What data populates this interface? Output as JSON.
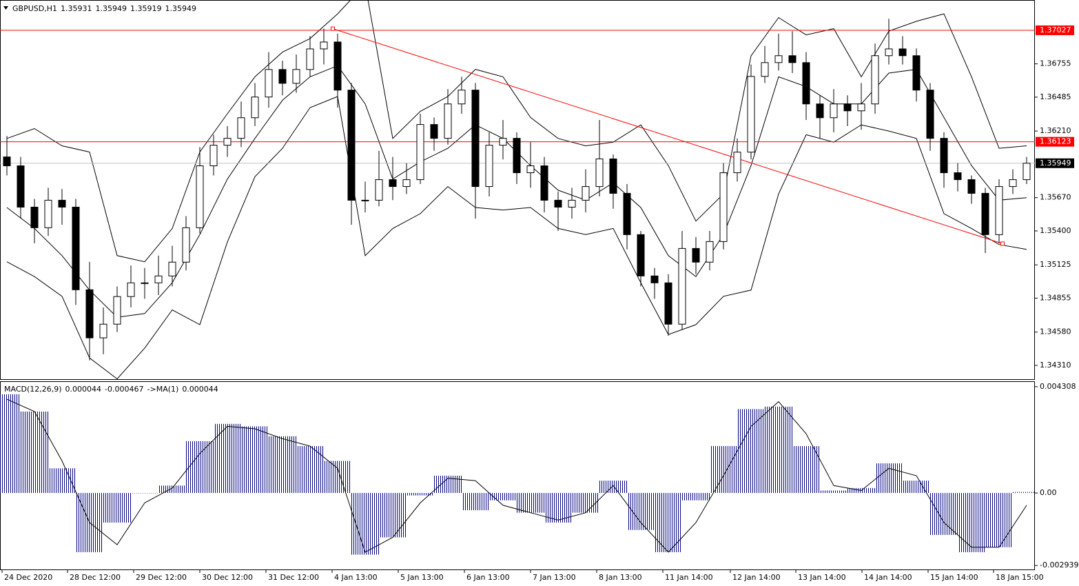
{
  "chart_data": [
    {
      "type": "candlestick",
      "title": "GBPUSD,H1",
      "quote": [
        1.35931,
        1.35949,
        1.35919,
        1.35949
      ],
      "color": "#000000",
      "open": [
        1.36,
        1.35928,
        1.35593,
        1.35426,
        1.35649,
        1.35593,
        1.34923,
        1.34533,
        1.34644,
        1.34868,
        1.34979,
        1.34979,
        1.35035,
        1.35147,
        1.35426,
        1.35928,
        1.36095,
        1.36151,
        1.36318,
        1.36486,
        1.36709,
        1.36597,
        1.36709,
        1.36876,
        1.36932,
        1.36542,
        1.35649,
        1.35649,
        1.35816,
        1.3576,
        1.35816,
        1.36263,
        1.36151,
        1.3643,
        1.36542,
        1.3576,
        1.36095,
        1.36151,
        1.35872,
        1.35928,
        1.35649,
        1.35593,
        1.35649,
        1.3576,
        1.35984,
        1.35705,
        1.3537,
        1.35035,
        1.34979,
        1.34644,
        1.35258,
        1.35147,
        1.35314,
        1.35872,
        1.36039,
        1.36653,
        1.36765,
        1.36821,
        1.36765,
        1.3643,
        1.36318,
        1.3643,
        1.36374,
        1.3643,
        1.36821,
        1.36876,
        1.36821,
        1.36542,
        1.36151,
        1.35872,
        1.35816,
        1.35705,
        1.3537,
        1.3576,
        1.35816
      ],
      "high": [
        1.3617,
        1.36,
        1.3566,
        1.3575,
        1.3574,
        1.3566,
        1.3515,
        1.3478,
        1.3495,
        1.3512,
        1.351,
        1.352,
        1.3528,
        1.3552,
        1.3608,
        1.3618,
        1.3625,
        1.3645,
        1.366,
        1.3685,
        1.3678,
        1.3683,
        1.3698,
        1.3704,
        1.37,
        1.366,
        1.358,
        1.3605,
        1.36,
        1.3595,
        1.3635,
        1.3632,
        1.3655,
        1.3665,
        1.366,
        1.362,
        1.363,
        1.362,
        1.3612,
        1.36,
        1.3572,
        1.3575,
        1.359,
        1.363,
        1.3602,
        1.3578,
        1.354,
        1.351,
        1.3505,
        1.354,
        1.3535,
        1.354,
        1.3595,
        1.3615,
        1.3675,
        1.369,
        1.37,
        1.3702,
        1.3685,
        1.365,
        1.3655,
        1.365,
        1.366,
        1.3692,
        1.3712,
        1.3698,
        1.3688,
        1.366,
        1.362,
        1.3595,
        1.3585,
        1.3575,
        1.3582,
        1.359,
        1.36
      ],
      "low": [
        1.3585,
        1.355,
        1.353,
        1.3536,
        1.3545,
        1.348,
        1.3435,
        1.344,
        1.3458,
        1.3478,
        1.3485,
        1.3488,
        1.3495,
        1.3508,
        1.3538,
        1.3585,
        1.36,
        1.3608,
        1.3625,
        1.364,
        1.365,
        1.3652,
        1.3665,
        1.3675,
        1.364,
        1.3545,
        1.3555,
        1.356,
        1.3565,
        1.357,
        1.3578,
        1.3605,
        1.361,
        1.3635,
        1.355,
        1.3568,
        1.3598,
        1.3578,
        1.3575,
        1.3555,
        1.354,
        1.355,
        1.3555,
        1.3568,
        1.3558,
        1.3525,
        1.3495,
        1.3485,
        1.3455,
        1.346,
        1.3505,
        1.3508,
        1.3525,
        1.358,
        1.3598,
        1.366,
        1.367,
        1.3668,
        1.363,
        1.3615,
        1.362,
        1.3625,
        1.3622,
        1.3635,
        1.3675,
        1.3675,
        1.3645,
        1.3605,
        1.3575,
        1.3572,
        1.3562,
        1.3522,
        1.353,
        1.357,
        1.3578
      ],
      "close": [
        1.35928,
        1.35593,
        1.35426,
        1.35649,
        1.35593,
        1.34923,
        1.34533,
        1.34644,
        1.34868,
        1.34979,
        1.34979,
        1.35035,
        1.35147,
        1.35426,
        1.35928,
        1.36095,
        1.36151,
        1.36318,
        1.36486,
        1.36709,
        1.36597,
        1.36709,
        1.36876,
        1.36932,
        1.36542,
        1.35649,
        1.35649,
        1.35816,
        1.3576,
        1.35816,
        1.36263,
        1.36151,
        1.3643,
        1.36542,
        1.3576,
        1.36095,
        1.36151,
        1.35872,
        1.35928,
        1.35649,
        1.35593,
        1.35649,
        1.3576,
        1.35984,
        1.35705,
        1.3537,
        1.35035,
        1.34979,
        1.34644,
        1.35258,
        1.35147,
        1.35314,
        1.35872,
        1.36039,
        1.36653,
        1.36765,
        1.36821,
        1.36765,
        1.3643,
        1.36318,
        1.3643,
        1.36374,
        1.3643,
        1.36821,
        1.36876,
        1.36821,
        1.36542,
        1.36151,
        1.35872,
        1.35816,
        1.35705,
        1.3537,
        1.3576,
        1.35816,
        1.35949
      ],
      "bands": {
        "color": "#000000",
        "x": [
          0,
          2,
          4,
          6,
          8,
          10,
          12,
          14,
          16,
          18,
          20,
          22,
          24,
          26,
          28,
          30,
          32,
          34,
          36,
          38,
          40,
          42,
          44,
          46,
          48,
          50,
          52,
          54,
          56,
          58,
          60,
          62,
          64,
          66,
          68,
          70,
          72,
          74
        ],
        "upper": [
          1.3615,
          1.3623,
          1.3609,
          1.3604,
          1.352,
          1.3515,
          1.3542,
          1.3604,
          1.3635,
          1.3665,
          1.3685,
          1.3696,
          1.3716,
          1.374,
          1.3615,
          1.3637,
          1.3649,
          1.3671,
          1.3665,
          1.3632,
          1.3615,
          1.3609,
          1.3612,
          1.3626,
          1.3593,
          1.3548,
          1.357,
          1.3682,
          1.3713,
          1.3699,
          1.3704,
          1.3665,
          1.3702,
          1.371,
          1.3716,
          1.3665,
          1.3607,
          1.3609
        ],
        "middle": [
          1.3559,
          1.3542,
          1.352,
          1.3492,
          1.347,
          1.3473,
          1.3498,
          1.3537,
          1.3582,
          1.3615,
          1.3646,
          1.3665,
          1.3674,
          1.3643,
          1.3582,
          1.3596,
          1.3607,
          1.3626,
          1.3615,
          1.3593,
          1.3573,
          1.3565,
          1.3579,
          1.3559,
          1.352,
          1.3503,
          1.3537,
          1.3593,
          1.3665,
          1.3657,
          1.3643,
          1.3643,
          1.3668,
          1.3671,
          1.3632,
          1.3593,
          1.3565,
          1.3567
        ],
        "lower": [
          1.3515,
          1.3503,
          1.3487,
          1.3437,
          1.342,
          1.3445,
          1.3476,
          1.3464,
          1.3531,
          1.3584,
          1.3607,
          1.364,
          1.3649,
          1.352,
          1.3542,
          1.3554,
          1.3576,
          1.3559,
          1.3557,
          1.3559,
          1.3542,
          1.3537,
          1.3542,
          1.3498,
          1.3456,
          1.3464,
          1.3487,
          1.3492,
          1.357,
          1.3618,
          1.3612,
          1.3626,
          1.3621,
          1.3615,
          1.3554,
          1.3542,
          1.3529,
          1.3525
        ]
      },
      "hlines": [
        {
          "value": 1.37027,
          "color": "#ff0000"
        },
        {
          "value": 1.36123,
          "color": "#ff0000"
        }
      ],
      "current": {
        "value": 1.35949,
        "color": "#000000"
      },
      "trendline": {
        "color": "#ff0000",
        "x": [
          23.65,
          72.25
        ],
        "values": [
          1.3704,
          1.35297
        ]
      },
      "xlim": [
        -0.5,
        74.6
      ],
      "ylim": [
        1.34198,
        1.37267
      ],
      "yticks": [
        1.36755,
        1.36485,
        {
          "value": 1.3621,
          "label": "1.36210"
        },
        {
          "value": 1.3567,
          "label": "1.35670"
        },
        {
          "value": 1.354,
          "label": "1.35400"
        },
        1.35125,
        1.34855,
        {
          "value": 1.3458,
          "label": "1.34580"
        },
        {
          "value": 1.3431,
          "label": "1.34310"
        }
      ],
      "xticks": [
        {
          "value": -0.35,
          "label": "24 Dec 2020"
        },
        {
          "value": 4.4,
          "label": "28 Dec 12:00"
        },
        {
          "value": 9.2,
          "label": "29 Dec 12:00"
        },
        {
          "value": 14,
          "label": "30 Dec 12:00"
        },
        {
          "value": 18.8,
          "label": "31 Dec 12:00"
        },
        {
          "value": 23.6,
          "label": "4 Jan 13:00"
        },
        {
          "value": 28.4,
          "label": "5 Jan 13:00"
        },
        {
          "value": 33.2,
          "label": "6 Jan 13:00"
        },
        {
          "value": 38,
          "label": "7 Jan 13:00"
        },
        {
          "value": 42.8,
          "label": "8 Jan 13:00"
        },
        {
          "value": 47.6,
          "label": "11 Jan 14:00"
        },
        {
          "value": 52.5,
          "label": "12 Jan 14:00"
        },
        {
          "value": 57.25,
          "label": "13 Jan 14:00"
        },
        {
          "value": 62.05,
          "label": "14 Jan 14:00"
        },
        {
          "value": 66.85,
          "label": "15 Jan 14:00"
        },
        {
          "value": 71.6,
          "label": "18 Jan 15:00"
        }
      ]
    },
    {
      "type": "macd",
      "title": "MACD(12,26,9)",
      "readout": [
        4.4e-05,
        -0.000467
      ],
      "signal_name": "->MA(1)",
      "signal_readout": 4.4e-05,
      "xlim": [
        -0.5,
        74.6
      ],
      "ylim": [
        -0.0031,
        0.0045
      ],
      "yticks": [
        0.004308,
        {
          "value": 0,
          "label": "0.00"
        },
        -0.002939
      ],
      "x": [
        0,
        2,
        4,
        6,
        8,
        10,
        12,
        14,
        16,
        18,
        20,
        22,
        24,
        26,
        28,
        30,
        32,
        34,
        36,
        38,
        40,
        42,
        44,
        46,
        48,
        50,
        52,
        54,
        56,
        58,
        60,
        62,
        64,
        66,
        68,
        70,
        72,
        74
      ],
      "series": [
        {
          "name": "MACD",
          "color": "#000080",
          "values": [
            0.004,
            0.0033,
            0.001,
            -0.0024,
            -0.0012,
            0,
            0.0003,
            0.0021,
            0.0028,
            0.0027,
            0.0023,
            0.0019,
            0.0013,
            -0.0025,
            -0.0018,
            -0.0001,
            0.0007,
            -0.0007,
            -0.0003,
            -0.0008,
            -0.0012,
            -0.0008,
            0.0005,
            -0.0015,
            -0.0024,
            -0.0003,
            0.0019,
            0.0034,
            0.0035,
            0.0019,
            0.0001,
            0.0002,
            0.0012,
            0.0005,
            -0.0017,
            -0.0024,
            -0.0022,
            4e-05
          ]
        },
        {
          "name": "Signal",
          "color": "#000000",
          "values": [
            0.0038,
            0.0033,
            0.0013,
            -0.0012,
            -0.0021,
            -0.0004,
            0.0002,
            0.0016,
            0.0027,
            0.0026,
            0.0022,
            0.0019,
            0.001,
            -0.0024,
            -0.0018,
            -0.0004,
            0.0006,
            0.0005,
            -0.0005,
            -0.0008,
            -0.0011,
            -0.0008,
            0.0003,
            -0.0012,
            -0.0024,
            -0.0012,
            0.0007,
            0.0027,
            0.0037,
            0.0024,
            0.0003,
            0.0001,
            0.001,
            0.0007,
            -0.0012,
            -0.0022,
            -0.0022,
            -0.0005
          ]
        }
      ]
    }
  ]
}
